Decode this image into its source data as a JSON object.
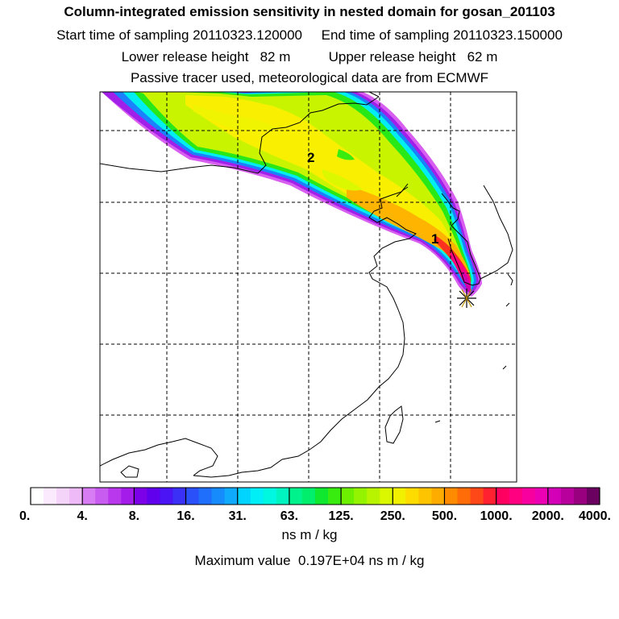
{
  "header": {
    "title": "Column-integrated emission sensitivity in nested domain for gosan_201103",
    "sampling_line": "Start time of sampling 20110323.120000     End time of sampling 20110323.150000",
    "release_line": "Lower release height   82 m          Upper release height   62 m",
    "tracer_line": "Passive tracer used, meteorological data are from ECMWF"
  },
  "map": {
    "plume_labels": [
      "1",
      "2"
    ],
    "receptor_marker": "asterisk",
    "grid": "dashed",
    "coastline_color": "#000000"
  },
  "colorbar": {
    "ticks": [
      "0.",
      "4.",
      "8.",
      "16.",
      "31.",
      "63.",
      "125.",
      "250.",
      "500.",
      "1000.",
      "2000.",
      "4000."
    ],
    "colors": [
      "#ffffff",
      "#fbeafd",
      "#f5d4fa",
      "#eebaf7",
      "#d77cf2",
      "#c95cf0",
      "#b938ee",
      "#a41cea",
      "#7c00e8",
      "#6000ec",
      "#4a14f4",
      "#3a30f6",
      "#2a50fa",
      "#1f6efc",
      "#168cfc",
      "#10aafc",
      "#00d4ff",
      "#00eef6",
      "#00f8e0",
      "#00f4c0",
      "#00f28c",
      "#00ee6c",
      "#10e830",
      "#38ec10",
      "#6cf000",
      "#94f400",
      "#b8f400",
      "#dcf800",
      "#f0f000",
      "#ffdc00",
      "#ffc400",
      "#ffac00",
      "#ff8c00",
      "#ff6c08",
      "#ff4818",
      "#ff2030",
      "#ff0060",
      "#ff0080",
      "#f800a0",
      "#ec00b4",
      "#d400b8",
      "#b8009c",
      "#980080",
      "#6a0060"
    ],
    "units": "ns m / kg",
    "max_value_text": "Maximum value  0.197E+04 ns m / kg"
  }
}
